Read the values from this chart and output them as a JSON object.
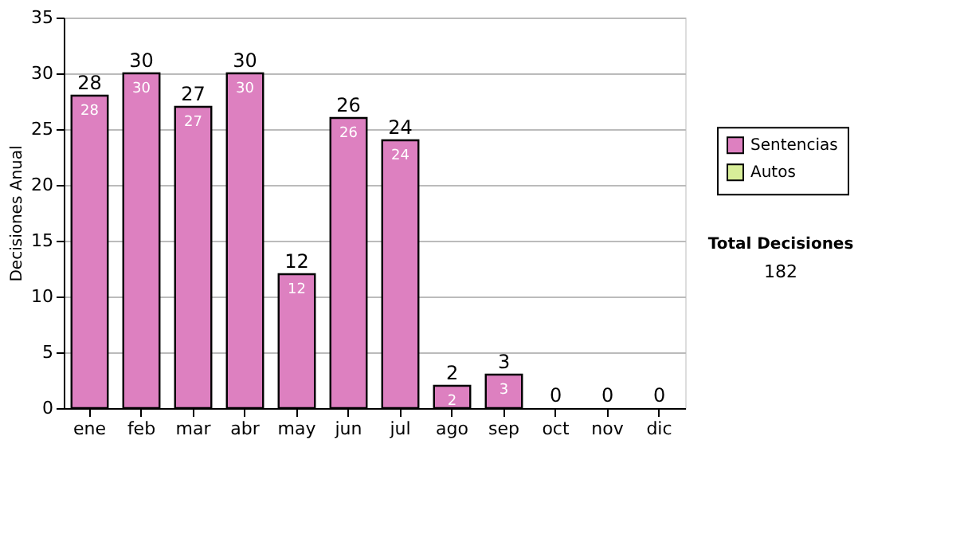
{
  "chart_data": {
    "type": "bar",
    "stacked": true,
    "ylabel": "Decisiones Anual",
    "categories": [
      "ene",
      "feb",
      "mar",
      "abr",
      "may",
      "jun",
      "jul",
      "ago",
      "sep",
      "oct",
      "nov",
      "dic"
    ],
    "series": [
      {
        "name": "Sentencias",
        "color": "#dd80c0",
        "values": [
          28,
          30,
          27,
          30,
          12,
          26,
          24,
          2,
          3,
          0,
          0,
          0
        ],
        "value_labels": [
          "28",
          "30",
          "27",
          "30",
          "12",
          "26",
          "24",
          "2",
          "3",
          null,
          null,
          null
        ]
      },
      {
        "name": "Autos",
        "color": "#d8ee99",
        "values": [
          0,
          0,
          0,
          0,
          0,
          0,
          0,
          0,
          0,
          0,
          0,
          0
        ]
      }
    ],
    "totals": [
      "28",
      "30",
      "27",
      "30",
      "12",
      "26",
      "24",
      "2",
      "3",
      "0",
      "0",
      "0"
    ],
    "ylim": [
      0,
      35
    ],
    "yticks": [
      0,
      5,
      10,
      15,
      20,
      25,
      30,
      35
    ],
    "grid": "y",
    "legend": "right",
    "annotations": [
      "Total Decisiones",
      "182"
    ]
  }
}
